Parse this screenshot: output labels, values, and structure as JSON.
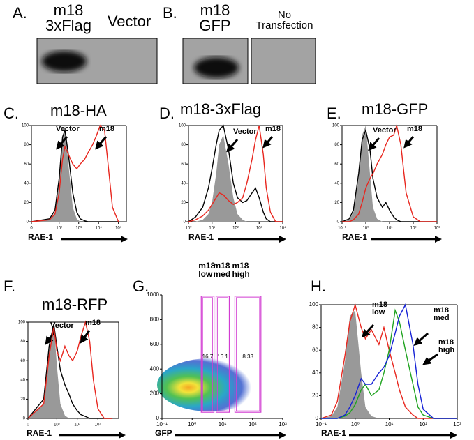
{
  "blots": [
    {
      "label": "A.",
      "lanes": [
        "m18\n3xFlag",
        "Vector"
      ]
    },
    {
      "label": "B.",
      "lanes": [
        "m18\nGFP",
        "No\nTransfection"
      ]
    }
  ],
  "chart_data": [
    {
      "type": "line",
      "label": "C.",
      "title": "m18-HA",
      "xlabel": "RAE-1",
      "xscale": "symlog",
      "xlim": [
        0,
        250000
      ],
      "xticks": [
        0,
        {
          "value": 100,
          "label": "10²"
        },
        {
          "value": 1000,
          "label": "10³"
        },
        {
          "value": 10000,
          "label": "10⁴"
        },
        {
          "value": 100000,
          "label": "10⁵"
        }
      ],
      "ylim": [
        0,
        100
      ],
      "yticks": [
        0,
        20,
        40,
        60,
        80,
        100
      ],
      "x": [
        0,
        30,
        60,
        100,
        150,
        200,
        300,
        500,
        800,
        1200,
        2000,
        3000,
        5000,
        8000,
        12000,
        20000,
        30000,
        50000,
        100000
      ],
      "series": [
        {
          "fill": "#999999",
          "values": [
            0,
            2,
            10,
            40,
            85,
            100,
            60,
            15,
            3,
            0,
            0,
            0,
            0,
            0,
            0,
            0,
            0,
            0,
            0
          ]
        },
        {
          "name": "Vector",
          "color": "#000000",
          "values": [
            0,
            3,
            12,
            45,
            88,
            95,
            70,
            30,
            10,
            3,
            1,
            0,
            0,
            0,
            0,
            0,
            0,
            0,
            0
          ]
        },
        {
          "name": "m18",
          "color": "#e8261e",
          "values": [
            0,
            2,
            8,
            30,
            65,
            78,
            70,
            60,
            55,
            60,
            65,
            72,
            80,
            90,
            100,
            95,
            60,
            15,
            0
          ]
        }
      ]
    },
    {
      "type": "line",
      "label": "D.",
      "title": "m18-3xFlag",
      "xlabel": "RAE-1",
      "xscale": "log",
      "xlim": [
        1,
        10000
      ],
      "xticks": [
        {
          "value": 1,
          "label": "10⁰"
        },
        {
          "value": 10,
          "label": "10¹"
        },
        {
          "value": 100,
          "label": "10²"
        },
        {
          "value": 1000,
          "label": "10³"
        },
        {
          "value": 10000,
          "label": "10⁴"
        }
      ],
      "ylim": [
        0,
        100
      ],
      "yticks": [
        0,
        20,
        40,
        60,
        80,
        100
      ],
      "x": [
        1,
        2,
        4,
        7,
        10,
        15,
        20,
        30,
        50,
        80,
        120,
        200,
        300,
        500,
        700,
        1000,
        1500,
        2000,
        3000,
        5000,
        10000
      ],
      "series": [
        {
          "fill": "#999999",
          "values": [
            0,
            0,
            2,
            8,
            20,
            50,
            80,
            90,
            60,
            25,
            8,
            2,
            0,
            0,
            0,
            0,
            0,
            0,
            0,
            0,
            0
          ]
        },
        {
          "name": "Vector",
          "color": "#000000",
          "values": [
            0,
            5,
            15,
            35,
            55,
            80,
            95,
            100,
            75,
            40,
            25,
            20,
            22,
            30,
            35,
            25,
            10,
            3,
            0,
            0,
            0
          ]
        },
        {
          "name": "m18",
          "color": "#e8261e",
          "values": [
            0,
            2,
            6,
            12,
            18,
            25,
            30,
            28,
            22,
            18,
            20,
            25,
            40,
            65,
            85,
            100,
            70,
            35,
            10,
            0,
            0
          ]
        }
      ]
    },
    {
      "type": "line",
      "label": "E.",
      "title": "m18-GFP",
      "xlabel": "RAE-1",
      "xscale": "log",
      "xlim": [
        0.1,
        1000
      ],
      "xticks": [
        {
          "value": 0.1,
          "label": "10⁻¹"
        },
        {
          "value": 1,
          "label": "10⁰"
        },
        {
          "value": 10,
          "label": "10¹"
        },
        {
          "value": 100,
          "label": "10²"
        },
        {
          "value": 1000,
          "label": "10³"
        }
      ],
      "ylim": [
        0,
        100
      ],
      "yticks": [
        0,
        20,
        40,
        60,
        80,
        100
      ],
      "x": [
        0.1,
        0.2,
        0.3,
        0.5,
        0.7,
        1,
        1.5,
        2,
        3,
        5,
        7,
        10,
        15,
        20,
        30,
        50,
        100,
        200,
        1000
      ],
      "series": [
        {
          "fill": "#999999",
          "values": [
            0,
            2,
            10,
            45,
            90,
            100,
            50,
            15,
            3,
            0,
            0,
            0,
            0,
            0,
            0,
            0,
            0,
            0,
            0
          ]
        },
        {
          "name": "Vector",
          "color": "#000000",
          "values": [
            0,
            3,
            12,
            50,
            85,
            95,
            75,
            45,
            25,
            15,
            20,
            12,
            5,
            2,
            0,
            0,
            0,
            0,
            0
          ]
        },
        {
          "name": "m18",
          "color": "#e8261e",
          "values": [
            0,
            0,
            2,
            8,
            20,
            35,
            45,
            50,
            60,
            70,
            80,
            88,
            90,
            100,
            80,
            30,
            5,
            0,
            0
          ]
        }
      ]
    },
    {
      "type": "line",
      "label": "F.",
      "title": "m18-RFP",
      "xlabel": "RAE-1",
      "xscale": "symlog",
      "xlim": [
        0,
        100000
      ],
      "xticks": [
        0,
        {
          "value": 100,
          "label": "10²"
        },
        {
          "value": 1000,
          "label": "10³"
        },
        {
          "value": 10000,
          "label": "10⁴"
        }
      ],
      "ylim": [
        0,
        100
      ],
      "yticks": [
        0,
        20,
        40,
        60,
        80,
        100
      ],
      "x": [
        0,
        20,
        40,
        70,
        100,
        150,
        250,
        400,
        600,
        1000,
        1500,
        2500,
        4000,
        6000,
        10000,
        20000,
        50000
      ],
      "series": [
        {
          "fill": "#999999",
          "values": [
            0,
            15,
            70,
            100,
            55,
            15,
            3,
            0,
            0,
            0,
            0,
            0,
            0,
            0,
            0,
            0,
            0
          ]
        },
        {
          "name": "Vector",
          "color": "#000000",
          "values": [
            0,
            20,
            75,
            98,
            75,
            50,
            35,
            25,
            15,
            8,
            4,
            2,
            0,
            0,
            0,
            0,
            0
          ]
        },
        {
          "name": "m18",
          "color": "#e8261e",
          "values": [
            0,
            15,
            65,
            95,
            70,
            60,
            75,
            65,
            60,
            70,
            85,
            100,
            80,
            40,
            10,
            0,
            0
          ]
        }
      ]
    },
    {
      "type": "gates",
      "label": "G.",
      "xlabel": "GFP",
      "xscale": "log",
      "xlim": [
        0.1,
        1000
      ],
      "xticks": [
        {
          "value": 0.1,
          "label": "10⁻¹"
        },
        {
          "value": 1,
          "label": "10⁰"
        },
        {
          "value": 10,
          "label": "10¹"
        },
        {
          "value": 100,
          "label": "10²"
        },
        {
          "value": 1000,
          "label": "10³"
        }
      ],
      "ylim": [
        0,
        1000
      ],
      "yticks": [
        0,
        200,
        400,
        600,
        800,
        1000
      ],
      "gates": [
        {
          "name": "m18\nlow",
          "xlim": [
            2,
            5.3
          ],
          "ylim": [
            50,
            990
          ],
          "value": 16.7
        },
        {
          "name": "m18\nmed",
          "xlim": [
            6.2,
            17
          ],
          "ylim": [
            50,
            990
          ],
          "value": 16.1
        },
        {
          "name": "m18\nhigh",
          "xlim": [
            26,
            190
          ],
          "ylim": [
            50,
            990
          ],
          "value": 8.33
        }
      ]
    },
    {
      "type": "line",
      "label": "H.",
      "xlabel": "RAE-1",
      "xscale": "log",
      "xlim": [
        0.1,
        1000
      ],
      "xticks": [
        {
          "value": 0.1,
          "label": "10⁻¹"
        },
        {
          "value": 1,
          "label": "10⁰"
        },
        {
          "value": 10,
          "label": "10¹"
        },
        {
          "value": 100,
          "label": "10²"
        },
        {
          "value": 1000,
          "label": "10³"
        }
      ],
      "ylim": [
        0,
        100
      ],
      "yticks": [
        0,
        20,
        40,
        60,
        80,
        100
      ],
      "x": [
        0.1,
        0.2,
        0.3,
        0.5,
        0.7,
        1,
        1.5,
        2,
        3,
        5,
        7,
        10,
        15,
        20,
        30,
        50,
        70,
        100,
        200,
        1000
      ],
      "series": [
        {
          "fill": "#999999",
          "values": [
            0,
            2,
            10,
            50,
            90,
            95,
            40,
            10,
            2,
            0,
            0,
            0,
            0,
            0,
            0,
            0,
            0,
            0,
            0,
            0
          ]
        },
        {
          "name": "m18\nlow",
          "color": "#e8261e",
          "values": [
            0,
            3,
            15,
            55,
            85,
            100,
            80,
            70,
            78,
            65,
            80,
            60,
            40,
            25,
            10,
            3,
            0,
            0,
            0,
            0
          ]
        },
        {
          "name": "m18\nmed",
          "color": "#1fa31f",
          "values": [
            0,
            0,
            0,
            2,
            5,
            12,
            25,
            30,
            20,
            25,
            40,
            60,
            95,
            85,
            60,
            30,
            10,
            3,
            0,
            0
          ]
        },
        {
          "name": "m18\nhigh",
          "color": "#1420d6",
          "values": [
            0,
            0,
            0,
            3,
            10,
            20,
            35,
            30,
            30,
            40,
            45,
            55,
            75,
            90,
            100,
            65,
            30,
            8,
            0,
            0
          ]
        }
      ]
    }
  ]
}
